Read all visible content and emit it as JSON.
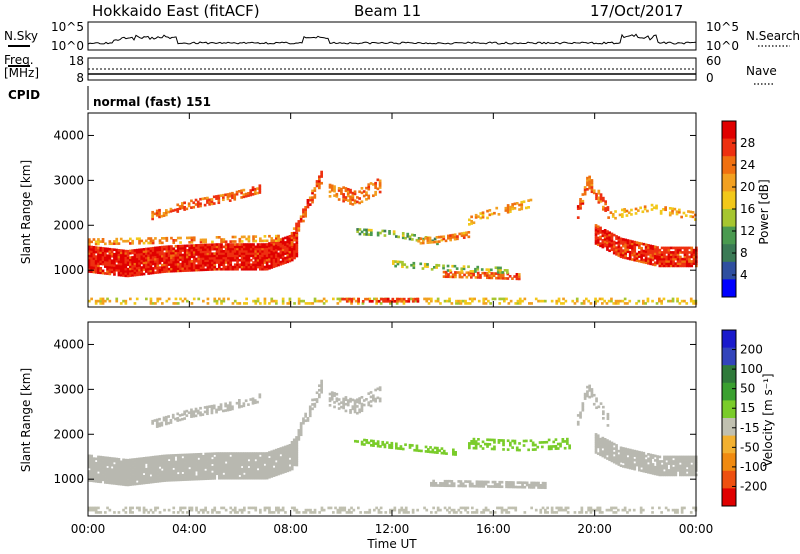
{
  "header": {
    "title": "Hokkaido East (fitACF)",
    "beam": "Beam 11",
    "date": "17/Oct/2017"
  },
  "top_panel": {
    "left_label": "N.Sky",
    "right_label": "N.Search",
    "tick_top": "10^5",
    "tick_bottom": "10^0"
  },
  "freq_panel": {
    "left_label_1": "Freq.",
    "left_label_2": "[MHz]",
    "right_label": "Nave",
    "ticks_left": [
      "18",
      "8"
    ],
    "ticks_right": [
      "60",
      "0"
    ]
  },
  "cpid_panel": {
    "label": "CPID",
    "mode_text": "normal (fast) 151"
  },
  "colors": {
    "power": [
      "#0000ff",
      "#2f4f9f",
      "#3a7a55",
      "#4a9a50",
      "#a6c630",
      "#f2c81a",
      "#f2a020",
      "#f07010",
      "#ee3010",
      "#e00000"
    ],
    "velocity": [
      "#1a1acc",
      "#3344bb",
      "#2f7a3a",
      "#3aa030",
      "#7acc2a",
      "#c0c0b0",
      "#f2b030",
      "#f08a10",
      "#ee5010",
      "#e00000"
    ],
    "ground_scatter": "#b8b8b0"
  },
  "chart_data": [
    {
      "type": "heatmap",
      "name": "Power",
      "xlabel": "",
      "ylabel": "Slant Range [km]",
      "y_ticks": [
        "1000",
        "2000",
        "3000",
        "4000"
      ],
      "ylim": [
        180,
        4500
      ],
      "colorbar_label": "Power [dB]",
      "colorbar_ticks": [
        "4",
        "8",
        "12",
        "16",
        "20",
        "24",
        "28"
      ],
      "colorbar_range": [
        0,
        32
      ],
      "bands": [
        {
          "t0": 0.0,
          "t1": 8.2,
          "r": [
            [
              0.0,
              1250
            ],
            [
              1.5,
              1150
            ],
            [
              3.0,
              1250
            ],
            [
              5.0,
              1300
            ],
            [
              7.0,
              1300
            ],
            [
              8.0,
              1500
            ],
            [
              8.2,
              1600
            ]
          ],
          "w": 600,
          "v": 29,
          "d": 0.95
        },
        {
          "t0": 0.0,
          "t1": 7.5,
          "r": [
            [
              0.0,
              1620
            ],
            [
              3.0,
              1650
            ],
            [
              6.0,
              1680
            ],
            [
              7.5,
              1700
            ]
          ],
          "w": 120,
          "v": 22,
          "d": 0.5
        },
        {
          "t0": 2.5,
          "t1": 6.8,
          "r": [
            [
              2.5,
              2200
            ],
            [
              4.0,
              2450
            ],
            [
              5.5,
              2600
            ],
            [
              6.8,
              2800
            ]
          ],
          "w": 160,
          "v": 25,
          "d": 0.55
        },
        {
          "t0": 8.0,
          "t1": 9.2,
          "r": [
            [
              8.0,
              1700
            ],
            [
              8.6,
              2400
            ],
            [
              9.2,
              3100
            ]
          ],
          "w": 300,
          "v": 26,
          "d": 0.7
        },
        {
          "t0": 9.5,
          "t1": 11.5,
          "r": [
            [
              9.5,
              2800
            ],
            [
              10.5,
              2600
            ],
            [
              11.5,
              2900
            ]
          ],
          "w": 350,
          "v": 24,
          "d": 0.5
        },
        {
          "t0": 10.5,
          "t1": 14.0,
          "r": [
            [
              10.5,
              1850
            ],
            [
              12.0,
              1800
            ],
            [
              14.0,
              1600
            ]
          ],
          "w": 120,
          "v": 13,
          "d": 0.45
        },
        {
          "t0": 13.0,
          "t1": 15.0,
          "r": [
            [
              13.0,
              1650
            ],
            [
              14.0,
              1700
            ],
            [
              15.0,
              1800
            ]
          ],
          "w": 150,
          "v": 23,
          "d": 0.7
        },
        {
          "t0": 14.0,
          "t1": 17.0,
          "r": [
            [
              14.0,
              900
            ],
            [
              15.5,
              880
            ],
            [
              17.0,
              850
            ]
          ],
          "w": 130,
          "v": 25,
          "d": 0.75
        },
        {
          "t0": 12.0,
          "t1": 16.5,
          "r": [
            [
              12.0,
              1150
            ],
            [
              14.0,
              1050
            ],
            [
              16.5,
              1000
            ]
          ],
          "w": 150,
          "v": 14,
          "d": 0.4
        },
        {
          "t0": 15.0,
          "t1": 17.5,
          "r": [
            [
              15.0,
              2100
            ],
            [
              16.0,
              2300
            ],
            [
              17.5,
              2500
            ]
          ],
          "w": 200,
          "v": 20,
          "d": 0.35
        },
        {
          "t0": 19.3,
          "t1": 20.5,
          "r": [
            [
              19.3,
              2300
            ],
            [
              19.7,
              3000
            ],
            [
              20.5,
              2300
            ]
          ],
          "w": 300,
          "v": 25,
          "d": 0.6
        },
        {
          "t0": 20.0,
          "t1": 24.0,
          "r": [
            [
              20.0,
              1800
            ],
            [
              21.0,
              1500
            ],
            [
              22.5,
              1300
            ],
            [
              24.0,
              1300
            ]
          ],
          "w": 450,
          "v": 28,
          "d": 0.9
        },
        {
          "t0": 20.5,
          "t1": 24.0,
          "r": [
            [
              20.5,
              2200
            ],
            [
              22.0,
              2400
            ],
            [
              24.0,
              2200
            ]
          ],
          "w": 200,
          "v": 20,
          "d": 0.35
        },
        {
          "t0": 0.0,
          "t1": 24.0,
          "r": [
            [
              0.0,
              300
            ],
            [
              24.0,
              300
            ]
          ],
          "w": 120,
          "v": 18,
          "d": 0.35
        },
        {
          "t0": 10.0,
          "t1": 13.0,
          "r": [
            [
              10.0,
              330
            ],
            [
              13.0,
              330
            ]
          ],
          "w": 90,
          "v": 28,
          "d": 0.6
        }
      ]
    },
    {
      "type": "heatmap",
      "name": "Velocity",
      "xlabel": "Time UT",
      "ylabel": "Slant Range [km]",
      "x_ticks": [
        "00:00",
        "04:00",
        "08:00",
        "12:00",
        "16:00",
        "20:00",
        "00:00"
      ],
      "xlim": [
        0,
        24
      ],
      "y_ticks": [
        "1000",
        "2000",
        "3000",
        "4000"
      ],
      "ylim": [
        180,
        4500
      ],
      "colorbar_label": "Velocity [m s⁻¹]",
      "colorbar_ticks": [
        "200",
        "100",
        "50",
        "15",
        "-15",
        "-50",
        "-100",
        "-200"
      ],
      "colorbar_range": [
        -250,
        250
      ],
      "bands": [
        {
          "t0": 0.0,
          "t1": 8.2,
          "r": [
            [
              0.0,
              1250
            ],
            [
              1.5,
              1150
            ],
            [
              3.0,
              1250
            ],
            [
              5.0,
              1300
            ],
            [
              7.0,
              1300
            ],
            [
              8.0,
              1500
            ],
            [
              8.2,
              1600
            ]
          ],
          "w": 600,
          "v": 0,
          "d": 0.95
        },
        {
          "t0": 2.5,
          "t1": 6.8,
          "r": [
            [
              2.5,
              2200
            ],
            [
              4.0,
              2450
            ],
            [
              5.5,
              2600
            ],
            [
              6.8,
              2800
            ]
          ],
          "w": 160,
          "v": 0,
          "d": 0.55
        },
        {
          "t0": 8.0,
          "t1": 9.2,
          "r": [
            [
              8.0,
              1700
            ],
            [
              8.6,
              2400
            ],
            [
              9.2,
              3100
            ]
          ],
          "w": 300,
          "v": 0,
          "d": 0.7
        },
        {
          "t0": 9.5,
          "t1": 11.5,
          "r": [
            [
              9.5,
              2800
            ],
            [
              10.5,
              2600
            ],
            [
              11.5,
              2900
            ]
          ],
          "w": 350,
          "v": 0,
          "d": 0.5
        },
        {
          "t0": 10.5,
          "t1": 14.5,
          "r": [
            [
              10.5,
              1850
            ],
            [
              12.0,
              1750
            ],
            [
              14.5,
              1600
            ]
          ],
          "w": 150,
          "v": 30,
          "d": 0.55
        },
        {
          "t0": 13.5,
          "t1": 18.0,
          "r": [
            [
              13.5,
              900
            ],
            [
              15.5,
              880
            ],
            [
              18.0,
              850
            ]
          ],
          "w": 120,
          "v": 0,
          "d": 0.7
        },
        {
          "t0": 15.0,
          "t1": 19.0,
          "r": [
            [
              15.0,
              1800
            ],
            [
              17.0,
              1750
            ],
            [
              19.0,
              1800
            ]
          ],
          "w": 250,
          "v": 35,
          "d": 0.4
        },
        {
          "t0": 19.3,
          "t1": 20.5,
          "r": [
            [
              19.3,
              2300
            ],
            [
              19.7,
              3000
            ],
            [
              20.5,
              2300
            ]
          ],
          "w": 300,
          "v": 0,
          "d": 0.6
        },
        {
          "t0": 20.0,
          "t1": 24.0,
          "r": [
            [
              20.0,
              1800
            ],
            [
              21.0,
              1500
            ],
            [
              22.5,
              1300
            ],
            [
              24.0,
              1300
            ]
          ],
          "w": 450,
          "v": 0,
          "d": 0.9
        },
        {
          "t0": 0.0,
          "t1": 24.0,
          "r": [
            [
              0.0,
              300
            ],
            [
              24.0,
              300
            ]
          ],
          "w": 120,
          "v": -40,
          "d": 0.35
        }
      ]
    }
  ]
}
